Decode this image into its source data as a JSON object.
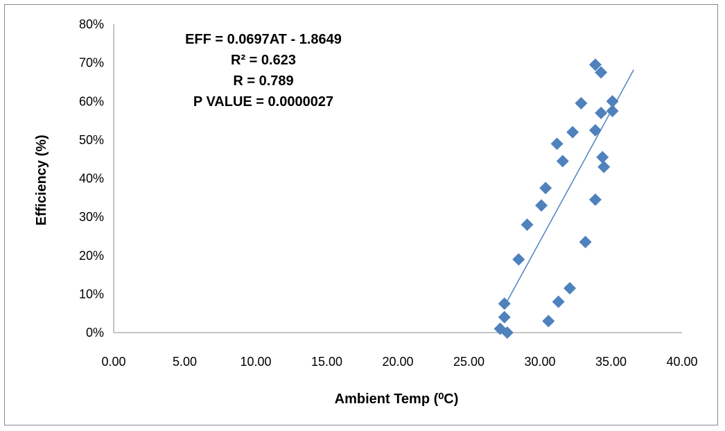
{
  "chart_data": {
    "type": "scatter",
    "title": "",
    "xlabel": "Ambient Temp (⁰C)",
    "ylabel": "Efficiency (%)",
    "xlim": [
      0,
      40
    ],
    "ylim": [
      0,
      80
    ],
    "x_ticks": [
      "0.00",
      "5.00",
      "10.00",
      "15.00",
      "20.00",
      "25.00",
      "30.00",
      "35.00",
      "40.00"
    ],
    "y_ticks": [
      "0%",
      "10%",
      "20%",
      "30%",
      "40%",
      "50%",
      "60%",
      "70%",
      "80%"
    ],
    "grid": false,
    "legend": "none",
    "marker": "diamond",
    "color": "#4F81BD",
    "points": [
      {
        "x": 27.2,
        "y": 1.0
      },
      {
        "x": 27.7,
        "y": 0.0
      },
      {
        "x": 27.5,
        "y": 4.0
      },
      {
        "x": 27.5,
        "y": 7.5
      },
      {
        "x": 28.5,
        "y": 19.0
      },
      {
        "x": 29.1,
        "y": 28.0
      },
      {
        "x": 30.1,
        "y": 33.0
      },
      {
        "x": 30.4,
        "y": 37.5
      },
      {
        "x": 31.2,
        "y": 49.0
      },
      {
        "x": 31.6,
        "y": 44.5
      },
      {
        "x": 32.3,
        "y": 52.0
      },
      {
        "x": 32.9,
        "y": 59.5
      },
      {
        "x": 30.6,
        "y": 3.0
      },
      {
        "x": 31.3,
        "y": 8.0
      },
      {
        "x": 32.1,
        "y": 11.5
      },
      {
        "x": 33.2,
        "y": 23.5
      },
      {
        "x": 33.9,
        "y": 34.5
      },
      {
        "x": 33.9,
        "y": 52.5
      },
      {
        "x": 34.3,
        "y": 57.0
      },
      {
        "x": 34.4,
        "y": 45.5
      },
      {
        "x": 34.5,
        "y": 43.0
      },
      {
        "x": 33.9,
        "y": 69.5
      },
      {
        "x": 34.3,
        "y": 67.5
      },
      {
        "x": 35.1,
        "y": 60.0
      },
      {
        "x": 35.1,
        "y": 57.5
      }
    ],
    "trendline": {
      "x": [
        27.6,
        36.6
      ],
      "y": [
        7.5,
        68.2
      ]
    },
    "annotation": [
      "EFF = 0.0697AT - 1.8649",
      "R² = 0.623",
      "R = 0.789",
      "P VALUE = 0.0000027"
    ]
  }
}
